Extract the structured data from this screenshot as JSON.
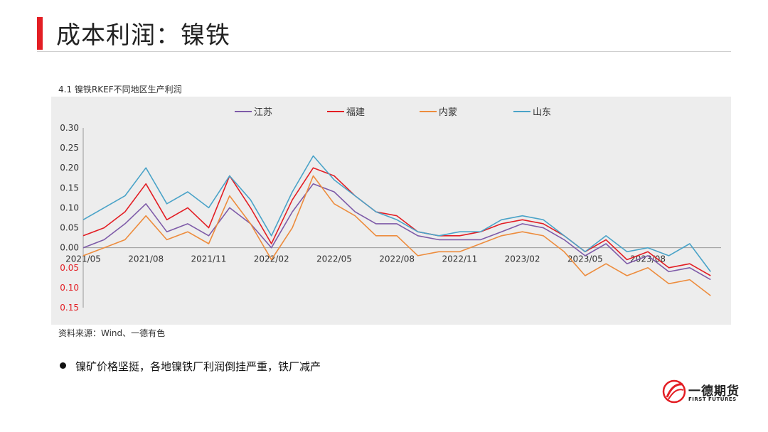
{
  "header": {
    "title": "成本利润：镍铁",
    "accent_color": "#e31e24"
  },
  "source": "资料来源：Wind、一德有色",
  "bullets": [
    "镍矿价格坚挺，各地镍铁厂利润倒挂严重，铁厂减产"
  ],
  "logo": {
    "name_cn": "一德期货",
    "name_en": "FIRST FUTURES"
  },
  "chart_data": {
    "type": "line",
    "title": "4.1 镍铁RKEF不同地区生产利润",
    "xlabel": "",
    "ylabel": "",
    "ylim": [
      -0.15,
      0.3
    ],
    "yticks": [
      0.3,
      0.25,
      0.2,
      0.15,
      0.1,
      0.05,
      0.0,
      -0.05,
      -0.1,
      -0.15
    ],
    "ytick_labels": [
      "0.30",
      "0.25",
      "0.20",
      "0.15",
      "0.10",
      "0.05",
      "0.00",
      "0.05",
      "0.10",
      "0.15"
    ],
    "negative_tick_color": "#e31e24",
    "xticks": [
      "2021/05",
      "2021/08",
      "2021/11",
      "2022/02",
      "2022/05",
      "2022/08",
      "2022/11",
      "2023/02",
      "2023/05",
      "2023/08"
    ],
    "x_month_range": [
      0,
      30.5
    ],
    "legend_position": "top",
    "grid": false,
    "x": [
      0,
      1,
      2,
      3,
      4,
      5,
      6,
      7,
      8,
      9,
      10,
      11,
      12,
      13,
      14,
      15,
      16,
      17,
      18,
      19,
      20,
      21,
      22,
      23,
      24,
      25,
      26,
      27,
      28,
      29,
      30
    ],
    "series": [
      {
        "name": "江苏",
        "color": "#7e5ba8",
        "values": [
          0.0,
          0.02,
          0.06,
          0.11,
          0.04,
          0.06,
          0.03,
          0.1,
          0.06,
          0.0,
          0.09,
          0.16,
          0.14,
          0.09,
          0.06,
          0.06,
          0.03,
          0.02,
          0.02,
          0.02,
          0.04,
          0.06,
          0.05,
          0.02,
          -0.02,
          0.01,
          -0.04,
          -0.02,
          -0.06,
          -0.05,
          -0.08
        ]
      },
      {
        "name": "福建",
        "color": "#e31e24",
        "values": [
          0.03,
          0.05,
          0.09,
          0.16,
          0.07,
          0.1,
          0.05,
          0.18,
          0.1,
          0.01,
          0.12,
          0.2,
          0.18,
          0.13,
          0.09,
          0.08,
          0.04,
          0.03,
          0.03,
          0.04,
          0.06,
          0.07,
          0.06,
          0.03,
          -0.01,
          0.02,
          -0.03,
          -0.01,
          -0.05,
          -0.04,
          -0.07
        ]
      },
      {
        "name": "内蒙",
        "color": "#ed8c3d",
        "values": [
          -0.02,
          0.0,
          0.02,
          0.08,
          0.02,
          0.04,
          0.01,
          0.13,
          0.06,
          -0.03,
          0.05,
          0.18,
          0.11,
          0.08,
          0.03,
          0.03,
          -0.02,
          -0.01,
          -0.01,
          0.01,
          0.03,
          0.04,
          0.03,
          -0.01,
          -0.07,
          -0.04,
          -0.07,
          -0.05,
          -0.09,
          -0.08,
          -0.12
        ]
      },
      {
        "name": "山东",
        "color": "#4aa3c8",
        "values": [
          0.07,
          0.1,
          0.13,
          0.2,
          0.11,
          0.14,
          0.1,
          0.18,
          0.12,
          0.03,
          0.14,
          0.23,
          0.17,
          0.13,
          0.09,
          0.07,
          0.04,
          0.03,
          0.04,
          0.04,
          0.07,
          0.08,
          0.07,
          0.03,
          -0.01,
          0.03,
          -0.01,
          0.0,
          -0.02,
          0.01,
          -0.06
        ]
      }
    ]
  }
}
